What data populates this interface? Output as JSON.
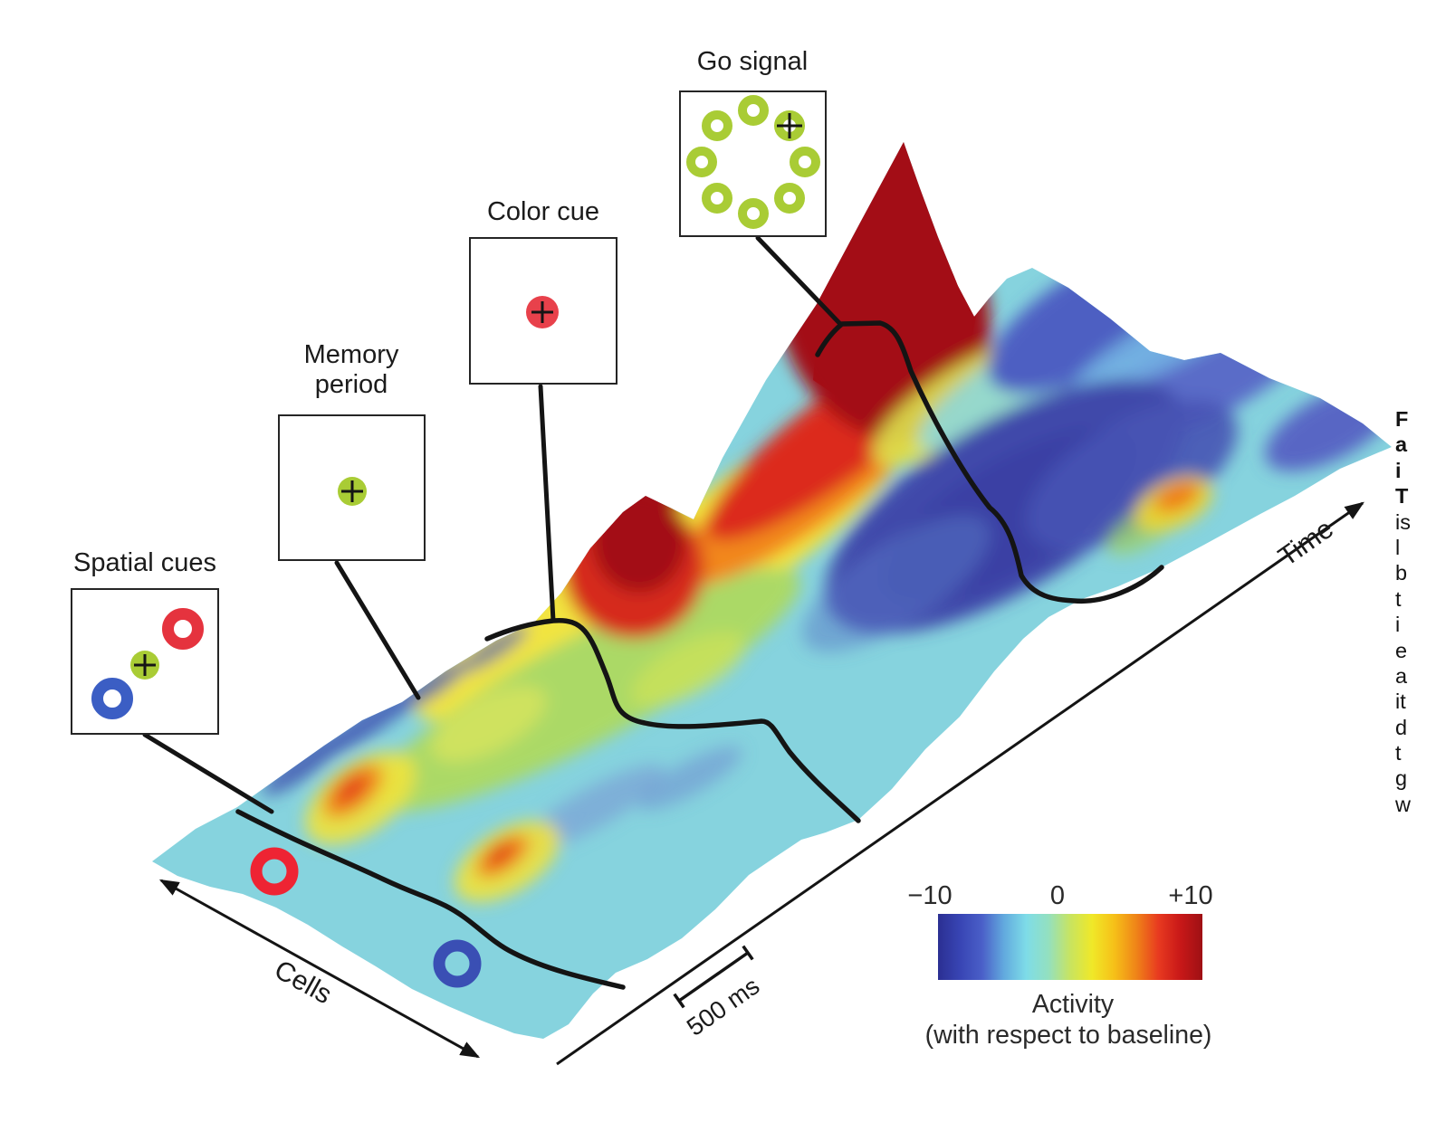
{
  "figure": {
    "axes": {
      "time_label": "Time",
      "cells_label": "Cells",
      "scale_bar_label": "500 ms"
    },
    "events": [
      {
        "id": "spatial-cues",
        "label": "Spatial cues"
      },
      {
        "id": "memory-period",
        "label": "Memory\nperiod"
      },
      {
        "id": "color-cue",
        "label": "Color cue"
      },
      {
        "id": "go-signal",
        "label": "Go signal"
      }
    ],
    "colorbar": {
      "min_label": "−10",
      "zero_label": "0",
      "max_label": "+10",
      "title": "Activity",
      "subtitle": "(with respect to baseline)",
      "stops": [
        "#2b2f92",
        "#3845b4",
        "#4a5fc8",
        "#62aade",
        "#7edce8",
        "#93e0c0",
        "#c8e460",
        "#f0e828",
        "#f6c018",
        "#ef8418",
        "#e83a20",
        "#c81818",
        "#9e1014"
      ]
    },
    "palette": {
      "stimulus_green": "#a9cc35",
      "stimulus_red": "#e8414b",
      "stimulus_red_ring": "#e5333e",
      "stimulus_blue": "#3b5ec4",
      "surface_red_ring": "#ee2433",
      "surface_blue_ring": "#3a4fb4",
      "surface_base_cyan": "#86d3de",
      "surface_peak_dark_red": "#a31115",
      "surface_valley_blue": "#3a41a4",
      "line_black": "#141414"
    },
    "caption_fragments": [
      {
        "text": "F",
        "bold": true
      },
      {
        "text": "a",
        "bold": true
      },
      {
        "text": "i",
        "bold": true
      },
      {
        "text": "T",
        "bold": true
      },
      {
        "text": "is",
        "bold": false
      },
      {
        "text": "l",
        "bold": false
      },
      {
        "text": "b",
        "bold": false
      },
      {
        "text": "t",
        "bold": false
      },
      {
        "text": "i",
        "bold": false
      },
      {
        "text": "e",
        "bold": false
      },
      {
        "text": "a",
        "bold": false
      },
      {
        "text": "it",
        "bold": false
      },
      {
        "text": "d",
        "bold": false
      },
      {
        "text": "t",
        "bold": false
      },
      {
        "text": "g",
        "bold": false
      },
      {
        "text": "w",
        "bold": false
      }
    ]
  },
  "chart_data": {
    "type": "heatmap",
    "subtype": "3d-surface-of-population-activity",
    "xlabel": "Time",
    "ylabel": "Cells",
    "zlabel": "Activity (with respect to baseline)",
    "color_range": [
      -10,
      10
    ],
    "colorbar_ticks": [
      "−10",
      "0",
      "+10"
    ],
    "time_scale_bar": "500 ms",
    "trial_events_in_order": [
      "Spatial cues",
      "Memory period",
      "Color cue",
      "Go signal"
    ],
    "stimuli": {
      "spatial_cues": "red ring upper-right, green fixation disc with cross at centre, blue ring lower-left",
      "memory_period": "green fixation disc with cross at centre",
      "color_cue": "red disc with cross at centre",
      "go_signal": "circle of eight green rings with fixation cross on the upper-right ring"
    },
    "surface_markers": [
      "red ring near front edge",
      "blue ring near front edge"
    ],
    "surface_features": [
      {
        "feature": "baseline plateau before/at spatial cues",
        "activity": 0,
        "color": "cyan"
      },
      {
        "feature": "small transient bumps after spatial cues",
        "activity": 5,
        "color": "yellow-orange"
      },
      {
        "feature": "sustained ridge during memory period",
        "activity": 4,
        "color": "yellow-green band along back edge"
      },
      {
        "feature": "medium peak at color cue",
        "activity": 10,
        "color": "dark red bump mid-surface"
      },
      {
        "feature": "tall peak at go signal",
        "activity": 10,
        "color": "large dark red peak"
      },
      {
        "feature": "deep suppression after go signal",
        "activity": -10,
        "color": "broad dark blue valley"
      },
      {
        "feature": "late small bump near trial end",
        "activity": 6,
        "color": "orange spot near right front edge"
      }
    ],
    "legend_position": "bottom-right colorbar",
    "grid": false
  }
}
